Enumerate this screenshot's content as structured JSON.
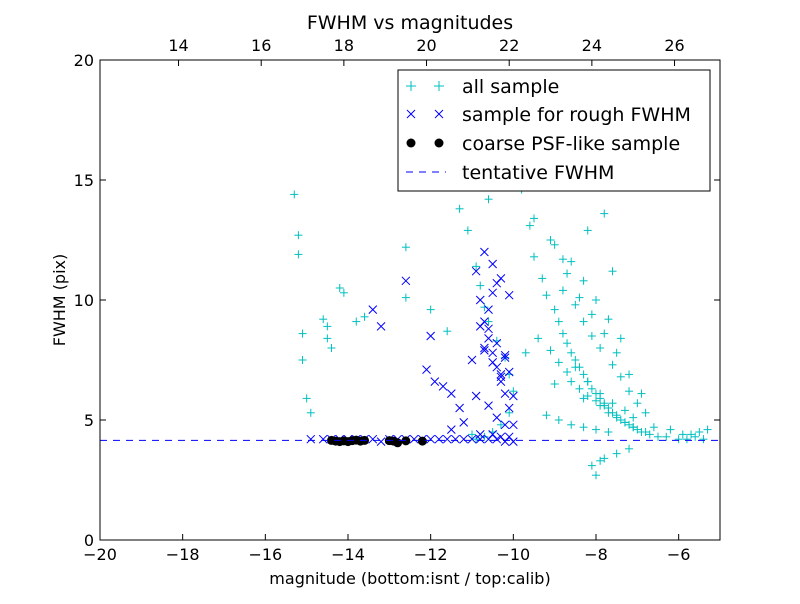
{
  "chart_data": {
    "type": "scatter",
    "title": "FWHM vs magnitudes",
    "xlabel": "magnitude (bottom:isnt / top:calib)",
    "ylabel": "FWHM (pix)",
    "xlim": [
      -20,
      -5
    ],
    "ylim": [
      0,
      20
    ],
    "x_ticks": [
      -20,
      -18,
      -16,
      -14,
      -12,
      -10,
      -8,
      -6
    ],
    "x_tick_labels": [
      "−20",
      "−18",
      "−16",
      "−14",
      "−12",
      "−10",
      "−8",
      "−6"
    ],
    "y_ticks": [
      0,
      5,
      10,
      15,
      20
    ],
    "y_tick_labels": [
      "0",
      "5",
      "10",
      "15",
      "20"
    ],
    "top_axis": {
      "offset": 32.1,
      "ticks": [
        14,
        16,
        18,
        20,
        22,
        24,
        26
      ],
      "tick_labels": [
        "14",
        "16",
        "18",
        "20",
        "22",
        "24",
        "26"
      ]
    },
    "grid": false,
    "legend_position": "top-right",
    "series": [
      {
        "name": "all sample",
        "marker": "plus",
        "color": "#00bfbf",
        "x": [
          -15.3,
          -15.2,
          -15.2,
          -15.1,
          -15.1,
          -15.0,
          -14.9,
          -14.6,
          -14.5,
          -14.5,
          -14.4,
          -14.2,
          -14.1,
          -13.8,
          -13.6,
          -12.6,
          -12.6,
          -12.0,
          -11.6,
          -11.3,
          -11.1,
          -10.9,
          -10.8,
          -10.7,
          -10.6,
          -10.4,
          -10.2,
          -10.1,
          -10.0,
          -10.1,
          -10.3,
          -10.5,
          -10.7,
          -10.9,
          -11.0,
          -10.6,
          -9.8,
          -9.6,
          -9.5,
          -9.3,
          -9.2,
          -9.0,
          -8.9,
          -8.8,
          -8.7,
          -8.6,
          -8.5,
          -8.4,
          -8.3,
          -8.2,
          -8.1,
          -8.0,
          -7.9,
          -7.8,
          -7.7,
          -7.6,
          -7.5,
          -7.4,
          -7.3,
          -7.2,
          -7.1,
          -7.0,
          -6.9,
          -6.8,
          -6.7,
          -6.5,
          -6.3,
          -6.0,
          -5.8,
          -5.6,
          -5.5,
          -5.3,
          -9.4,
          -9.1,
          -8.9,
          -8.7,
          -8.6,
          -8.4,
          -8.2,
          -8.0,
          -7.8,
          -7.7,
          -7.5,
          -7.3,
          -7.1,
          -8.8,
          -8.5,
          -8.3,
          -8.1,
          -7.9,
          -7.6,
          -7.4,
          -7.2,
          -7.0,
          -6.8,
          -8.6,
          -8.3,
          -8.0,
          -7.7,
          -7.4,
          -9.0,
          -8.7,
          -8.4,
          -8.1,
          -7.8,
          -7.5,
          -7.2,
          -6.9,
          -8.5,
          -8.2,
          -7.9,
          -7.6,
          -7.3,
          -9.2,
          -8.9,
          -8.6,
          -8.3,
          -8.0,
          -7.7,
          -9.5,
          -9.1,
          -8.8,
          -8.2,
          -7.6,
          -8.0,
          -7.8,
          -8.4,
          -8.6,
          -7.6,
          -8.2,
          -8.8,
          -9.4,
          -9.6,
          -9.8,
          -9.7,
          -9.0,
          -8.3,
          -7.9,
          -7.1,
          -6.6,
          -6.2,
          -5.9,
          -5.7,
          -5.4,
          -7.8,
          -7.5,
          -7.2,
          -8.0,
          -8.1,
          -7.9
        ],
        "y": [
          14.4,
          12.7,
          11.9,
          8.6,
          7.5,
          5.9,
          5.3,
          9.2,
          8.9,
          8.4,
          8.0,
          10.5,
          10.3,
          9.1,
          9.3,
          12.2,
          10.1,
          9.6,
          8.7,
          13.8,
          12.9,
          11.4,
          10.6,
          9.7,
          9.1,
          8.3,
          7.6,
          6.9,
          6.2,
          5.3,
          4.8,
          4.5,
          4.3,
          4.2,
          4.4,
          14.2,
          15.9,
          13.1,
          11.8,
          10.9,
          10.2,
          9.6,
          9.1,
          8.6,
          8.2,
          7.8,
          7.5,
          7.2,
          6.9,
          6.6,
          6.3,
          6.1,
          5.9,
          5.7,
          5.5,
          5.3,
          5.2,
          5.0,
          4.9,
          4.8,
          4.7,
          4.6,
          4.5,
          4.5,
          4.4,
          4.3,
          4.3,
          4.2,
          4.2,
          4.3,
          4.5,
          4.6,
          8.4,
          7.9,
          7.4,
          7.0,
          6.6,
          6.3,
          6.0,
          5.8,
          5.6,
          5.3,
          5.1,
          4.9,
          4.7,
          10.4,
          9.8,
          9.1,
          8.5,
          8.0,
          7.3,
          6.8,
          6.2,
          5.7,
          5.3,
          11.6,
          10.8,
          10.0,
          9.2,
          8.4,
          12.3,
          11.1,
          10.1,
          9.4,
          8.6,
          7.8,
          6.9,
          6.1,
          7.2,
          6.6,
          6.1,
          5.7,
          5.4,
          5.2,
          5.0,
          4.8,
          4.7,
          4.6,
          4.5,
          13.4,
          12.5,
          11.7,
          12.9,
          11.2,
          14.8,
          13.6,
          16.0,
          17.4,
          16.4,
          17.9,
          18.8,
          19.3,
          17.6,
          14.6,
          7.8,
          6.5,
          5.9,
          5.6,
          5.1,
          4.7,
          4.6,
          4.4,
          4.4,
          4.2,
          3.4,
          3.6,
          3.8,
          2.7,
          3.1,
          3.3
        ]
      },
      {
        "name": "sample for rough FWHM",
        "marker": "x",
        "color": "#0000ff",
        "x": [
          -14.9,
          -14.6,
          -14.4,
          -14.2,
          -14.0,
          -13.8,
          -13.6,
          -13.4,
          -13.2,
          -13.0,
          -12.8,
          -12.6,
          -12.4,
          -12.2,
          -12.0,
          -11.8,
          -11.6,
          -11.4,
          -11.2,
          -11.0,
          -10.8,
          -10.6,
          -10.4,
          -10.2,
          -10.0,
          -13.4,
          -13.2,
          -12.6,
          -12.0,
          -12.1,
          -11.9,
          -11.7,
          -11.5,
          -11.5,
          -11.3,
          -11.2,
          -11.0,
          -10.9,
          -10.8,
          -10.7,
          -10.6,
          -10.5,
          -10.4,
          -10.3,
          -10.2,
          -10.1,
          -10.0,
          -10.9,
          -10.8,
          -10.7,
          -10.6,
          -10.5,
          -10.4,
          -10.3,
          -10.2,
          -10.1,
          -10.0,
          -10.7,
          -10.5,
          -10.3,
          -10.1,
          -10.6,
          -10.4,
          -10.2,
          -10.7,
          -10.5,
          -10.3,
          -10.6,
          -10.4,
          -10.2,
          -10.8,
          -10.5,
          -10.3,
          -10.1
        ],
        "y": [
          4.2,
          4.2,
          4.2,
          4.2,
          4.2,
          4.2,
          4.2,
          4.2,
          4.1,
          4.2,
          4.2,
          4.2,
          4.2,
          4.2,
          4.2,
          4.2,
          4.2,
          4.2,
          4.2,
          4.2,
          4.2,
          4.2,
          4.2,
          4.1,
          4.1,
          9.6,
          8.9,
          10.8,
          8.5,
          7.1,
          6.6,
          6.4,
          6.1,
          4.6,
          5.5,
          4.9,
          7.5,
          6.0,
          8.9,
          8.0,
          9.6,
          10.3,
          10.7,
          6.8,
          7.6,
          7.0,
          6.0,
          11.2,
          10.0,
          9.1,
          8.4,
          7.8,
          7.2,
          6.6,
          6.1,
          5.5,
          4.8,
          12.0,
          11.5,
          10.9,
          10.2,
          5.6,
          5.1,
          4.8,
          7.9,
          7.4,
          6.9,
          8.8,
          8.2,
          7.7,
          4.4,
          4.4,
          4.3,
          4.3
        ]
      },
      {
        "name": "coarse PSF-like sample",
        "marker": "dot",
        "color": "#000000",
        "x": [
          -14.4,
          -14.3,
          -14.2,
          -14.1,
          -14.0,
          -13.9,
          -13.8,
          -13.7,
          -13.6,
          -13.0,
          -12.9,
          -12.8,
          -12.6,
          -12.2
        ],
        "y": [
          4.15,
          4.12,
          4.1,
          4.13,
          4.1,
          4.14,
          4.16,
          4.12,
          4.15,
          4.14,
          4.12,
          4.05,
          4.13,
          4.12
        ]
      },
      {
        "name": "tentative FWHM",
        "marker": "dashed-line",
        "color": "#0000ff",
        "y_constant": 4.15
      }
    ]
  }
}
